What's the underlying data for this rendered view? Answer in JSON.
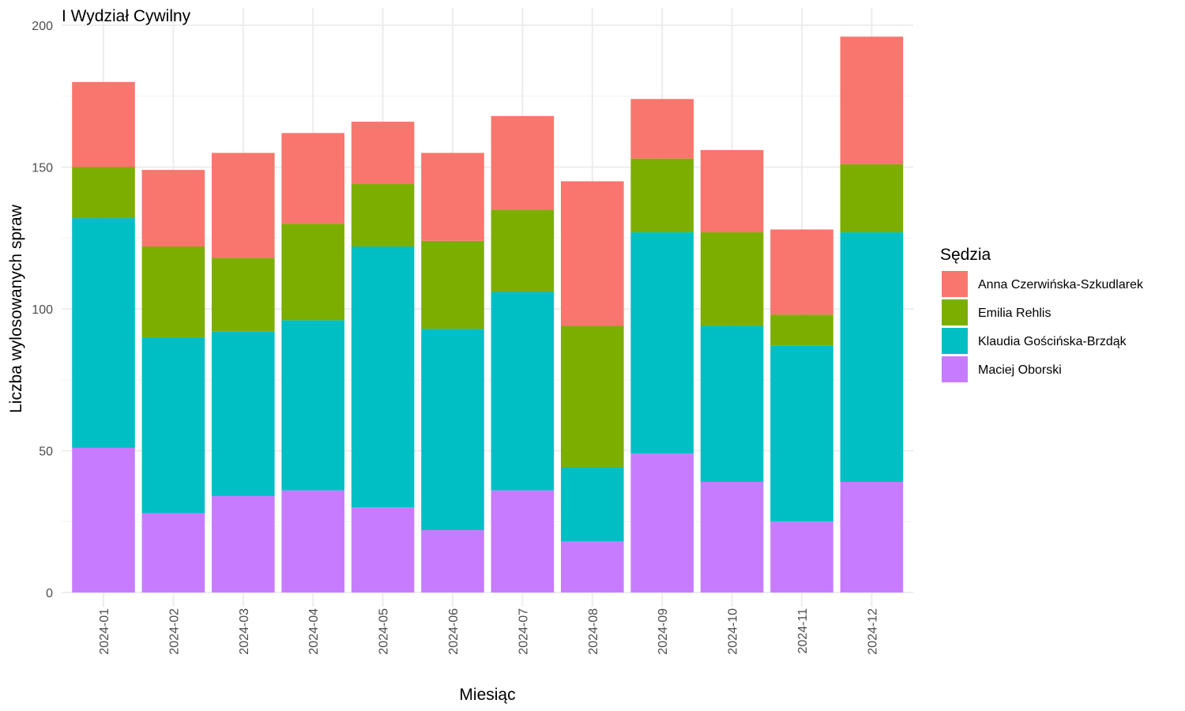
{
  "chart_data": {
    "type": "bar",
    "stacked": true,
    "title": "I Wydział Cywilny",
    "xlabel": "Miesiąc",
    "ylabel": "Liczba wylosowanych spraw",
    "ylim": [
      0,
      200
    ],
    "yticks": [
      0,
      50,
      100,
      150,
      200
    ],
    "grid": true,
    "legend_title": "Sędzia",
    "legend_position": "right",
    "categories": [
      "2024-01",
      "2024-02",
      "2024-03",
      "2024-04",
      "2024-05",
      "2024-06",
      "2024-07",
      "2024-08",
      "2024-09",
      "2024-10",
      "2024-11",
      "2024-12"
    ],
    "series": [
      {
        "name": "Maciej Oborski",
        "color": "#C77CFF",
        "values": [
          51,
          28,
          34,
          36,
          30,
          22,
          36,
          18,
          49,
          39,
          25,
          39
        ]
      },
      {
        "name": "Klaudia Gościńska-Brzdąk",
        "color": "#00BFC4",
        "values": [
          81,
          62,
          58,
          60,
          92,
          71,
          70,
          26,
          78,
          55,
          62,
          88
        ]
      },
      {
        "name": "Emilia Rehlis",
        "color": "#7CAE00",
        "values": [
          18,
          32,
          26,
          34,
          22,
          31,
          29,
          50,
          26,
          33,
          11,
          24
        ]
      },
      {
        "name": "Anna Czerwińska-Szkudlarek",
        "color": "#F8766D",
        "values": [
          30,
          27,
          37,
          32,
          22,
          31,
          33,
          51,
          21,
          29,
          30,
          45
        ]
      }
    ],
    "legend_order": [
      "Anna Czerwińska-Szkudlarek",
      "Emilia Rehlis",
      "Klaudia Gościńska-Brzdąk",
      "Maciej Oborski"
    ]
  }
}
